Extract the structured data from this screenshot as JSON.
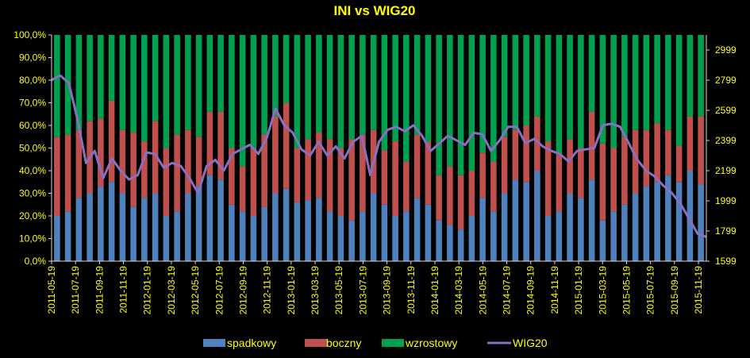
{
  "chart_data": {
    "type": "bar",
    "stacked": true,
    "title": "INI vs WIG20",
    "x_labels": [
      "2011-05-19",
      "2011-07-19",
      "2011-09-19",
      "2011-11-19",
      "2012-01-19",
      "2012-03-19",
      "2012-05-19",
      "2012-07-19",
      "2012-09-19",
      "2012-11-19",
      "2013-01-19",
      "2013-03-19",
      "2013-05-19",
      "2013-07-19",
      "2013-09-19",
      "2013-11-19",
      "2014-01-19",
      "2014-03-19",
      "2014-05-19",
      "2014-07-19",
      "2014-09-19",
      "2014-11-19",
      "2015-01-19",
      "2015-03-19",
      "2015-05-19",
      "2015-07-19",
      "2015-09-19",
      "2015-11-19"
    ],
    "y_left_ticks": [
      "0,0%",
      "10,0%",
      "20,0%",
      "30,0%",
      "40,0%",
      "50,0%",
      "60,0%",
      "70,0%",
      "80,0%",
      "90,0%",
      "100,0%"
    ],
    "y_left_range": [
      0,
      100
    ],
    "y_right_ticks": [
      "1599",
      "1799",
      "1999",
      "2199",
      "2399",
      "2599",
      "2799",
      "2999"
    ],
    "y_right_range": [
      1599,
      3099
    ],
    "series": [
      {
        "name": "spadkowy",
        "kind": "bar",
        "color": "#4f81bd",
        "values": [
          20,
          22,
          28,
          30,
          33,
          35,
          30,
          24,
          28,
          30,
          20,
          22,
          30,
          33,
          38,
          36,
          25,
          22,
          20,
          24,
          30,
          32,
          26,
          27,
          28,
          22,
          20,
          18,
          22,
          30,
          25,
          20,
          22,
          28,
          25,
          18,
          16,
          14,
          20,
          28,
          22,
          30,
          36,
          35,
          40,
          20,
          22,
          30,
          28,
          36,
          18,
          22,
          25,
          30,
          33,
          35,
          38,
          35,
          40,
          34
        ]
      },
      {
        "name": "boczny",
        "kind": "bar",
        "color": "#c0504d",
        "values": [
          35,
          34,
          30,
          32,
          30,
          36,
          28,
          33,
          25,
          32,
          30,
          34,
          28,
          22,
          28,
          30,
          25,
          20,
          30,
          32,
          34,
          38,
          24,
          27,
          29,
          32,
          30,
          36,
          34,
          28,
          24,
          33,
          22,
          28,
          28,
          20,
          26,
          24,
          20,
          20,
          22,
          25,
          22,
          25,
          24,
          33,
          25,
          24,
          22,
          30,
          34,
          28,
          30,
          28,
          25,
          26,
          20,
          16,
          24,
          30
        ]
      },
      {
        "name": "wzrostowy",
        "kind": "bar",
        "color": "#00a050",
        "values": [
          45,
          44,
          42,
          38,
          37,
          29,
          42,
          43,
          47,
          38,
          50,
          44,
          42,
          45,
          34,
          34,
          50,
          58,
          50,
          44,
          36,
          30,
          50,
          46,
          43,
          46,
          50,
          46,
          44,
          42,
          51,
          47,
          56,
          44,
          47,
          62,
          58,
          62,
          60,
          52,
          56,
          45,
          42,
          40,
          36,
          47,
          53,
          46,
          50,
          34,
          48,
          50,
          45,
          42,
          42,
          39,
          42,
          49,
          36,
          36
        ]
      },
      {
        "name": "WIG20",
        "kind": "line",
        "axis": "right",
        "color": "#8a6fc0",
        "values": [
          2800,
          2830,
          2780,
          2540,
          2250,
          2330,
          2150,
          2280,
          2200,
          2140,
          2170,
          2320,
          2310,
          2220,
          2250,
          2230,
          2150,
          2050,
          2230,
          2270,
          2200,
          2310,
          2340,
          2370,
          2310,
          2420,
          2610,
          2500,
          2450,
          2340,
          2300,
          2390,
          2300,
          2360,
          2280,
          2390,
          2430,
          2170,
          2390,
          2470,
          2490,
          2460,
          2500,
          2430,
          2330,
          2380,
          2430,
          2400,
          2370,
          2450,
          2440,
          2330,
          2400,
          2490,
          2490,
          2380,
          2410,
          2360,
          2330,
          2310,
          2260,
          2330,
          2340,
          2350,
          2500,
          2510,
          2490,
          2380,
          2270,
          2200,
          2160,
          2100,
          2050,
          1980,
          1880,
          1780,
          1760
        ]
      }
    ],
    "legend": [
      "spadkowy",
      "boczny",
      "wzrostowy",
      "WIG20"
    ],
    "legend_position": "bottom",
    "grid": false
  }
}
